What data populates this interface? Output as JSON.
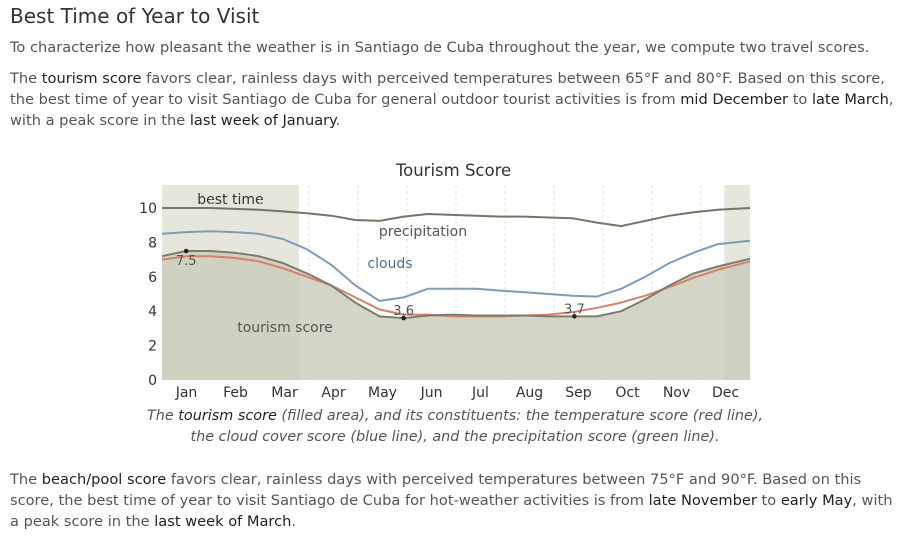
{
  "heading": "Best Time of Year to Visit",
  "intro": "To characterize how pleasant the weather is in Santiago de Cuba throughout the year, we compute two travel scores.",
  "tourism_paragraph": {
    "t1": "The ",
    "term": "tourism score",
    "t2": " favors clear, rainless days with perceived temperatures between 65°F and 80°F. Based on this score, the best time of year to visit Santiago de Cuba for general outdoor tourist activities is from ",
    "start": "mid December",
    "t3": " to ",
    "end": "late March",
    "t4": ", with a peak score in the ",
    "peak": "last week of January",
    "t5": "."
  },
  "beach_paragraph": {
    "t1": "The ",
    "term": "beach/pool score",
    "t2": " favors clear, rainless days with perceived temperatures between 75°F and 90°F. Based on this score, the best time of year to visit Santiago de Cuba for hot-weather activities is from ",
    "start": "late November",
    "t3": " to ",
    "end": "early May",
    "t4": ", with a peak score in the ",
    "peak": "last week of March",
    "t5": "."
  },
  "caption": {
    "t1": "The ",
    "term": "tourism score",
    "t2": " (filled area), and its constituents: the temperature score (red line), the cloud cover score (blue line), and the precipitation score (green line)."
  },
  "chart_data": {
    "type": "area",
    "title": "Tourism Score",
    "ylim": [
      0,
      10
    ],
    "yticks": [
      "0",
      "2",
      "4",
      "6",
      "8",
      "10"
    ],
    "month_labels": [
      "Jan",
      "Feb",
      "Mar",
      "Apr",
      "May",
      "Jun",
      "Jul",
      "Aug",
      "Sep",
      "Oct",
      "Nov",
      "Dec"
    ],
    "x_range_days": [
      0,
      365
    ],
    "best_time": {
      "label": "best time",
      "ranges": [
        [
          0,
          85
        ],
        [
          349,
          365
        ]
      ]
    },
    "x": [
      0,
      15,
      30,
      45,
      60,
      75,
      90,
      105,
      120,
      135,
      150,
      165,
      180,
      195,
      210,
      225,
      240,
      255,
      270,
      285,
      300,
      315,
      330,
      345,
      365
    ],
    "series": [
      {
        "role": "tourism",
        "label": "tourism score",
        "color": "#7d7d6d",
        "fill": "#cdcdbd",
        "values": [
          7.2,
          7.5,
          7.5,
          7.4,
          7.2,
          6.8,
          6.2,
          5.5,
          4.5,
          3.7,
          3.6,
          3.75,
          3.8,
          3.75,
          3.75,
          3.75,
          3.7,
          3.7,
          3.7,
          4.0,
          4.7,
          5.5,
          6.2,
          6.6,
          7.05
        ]
      },
      {
        "role": "temperature",
        "color": "#d4826c",
        "values": [
          7.0,
          7.2,
          7.2,
          7.1,
          6.9,
          6.5,
          6.0,
          5.5,
          4.8,
          4.1,
          3.8,
          3.8,
          3.7,
          3.7,
          3.7,
          3.75,
          3.8,
          3.95,
          4.2,
          4.5,
          4.9,
          5.4,
          5.95,
          6.4,
          6.9
        ]
      },
      {
        "role": "clouds",
        "label": "clouds",
        "color": "#7f9bb7",
        "values": [
          8.5,
          8.6,
          8.65,
          8.6,
          8.5,
          8.2,
          7.6,
          6.7,
          5.5,
          4.6,
          4.8,
          5.3,
          5.3,
          5.3,
          5.2,
          5.1,
          5.0,
          4.9,
          4.85,
          5.3,
          6.0,
          6.8,
          7.4,
          7.9,
          8.1
        ]
      },
      {
        "role": "precipitation",
        "label": "precipitation",
        "color": "#707866",
        "values": [
          10.0,
          10.0,
          10.0,
          9.95,
          9.9,
          9.8,
          9.7,
          9.55,
          9.3,
          9.25,
          9.5,
          9.65,
          9.6,
          9.55,
          9.5,
          9.5,
          9.45,
          9.4,
          9.15,
          8.95,
          9.25,
          9.55,
          9.75,
          9.9,
          10.0
        ]
      }
    ],
    "markers": [
      {
        "label": "7.5",
        "x": 15,
        "y": 7.5
      },
      {
        "label": "3.6",
        "x": 150,
        "y": 3.6
      },
      {
        "label": "3.7",
        "x": 256,
        "y": 3.7
      }
    ]
  }
}
